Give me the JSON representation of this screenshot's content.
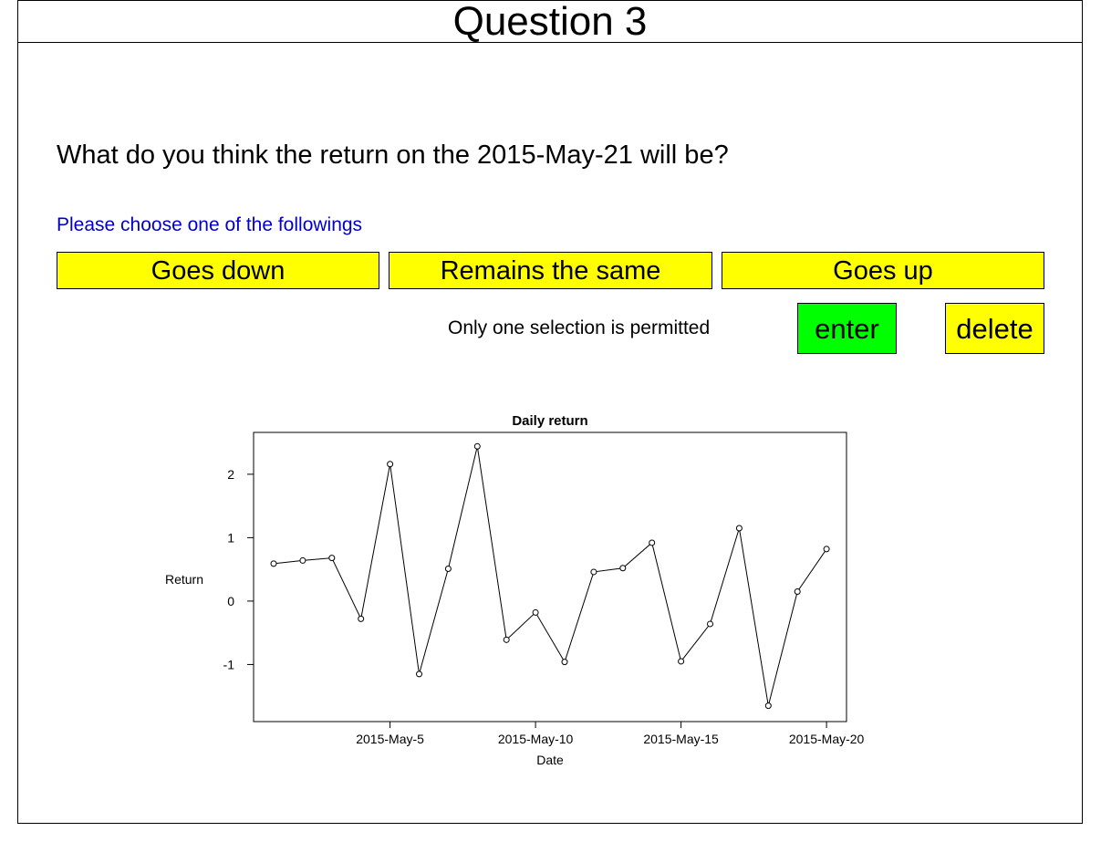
{
  "header": {
    "title": "Question 3"
  },
  "question": {
    "text": "What do you think the return on the 2015-May-21 will be?"
  },
  "instruction": "Please choose one of the followings",
  "choices": [
    {
      "label": "Goes down"
    },
    {
      "label": "Remains the same"
    },
    {
      "label": "Goes up"
    }
  ],
  "note": "Only one selection is permitted",
  "actions": {
    "enter_label": "enter",
    "delete_label": "delete"
  },
  "colors": {
    "choice_bg": "#ffff00",
    "enter_bg": "#00ff00",
    "delete_bg": "#ffff00",
    "instruction_text": "#0000cc"
  },
  "chart_data": {
    "type": "line",
    "title": "Daily return",
    "xlabel": "Date",
    "ylabel": "Return",
    "x": [
      "2015-May-1",
      "2015-May-2",
      "2015-May-3",
      "2015-May-4",
      "2015-May-5",
      "2015-May-6",
      "2015-May-7",
      "2015-May-8",
      "2015-May-9",
      "2015-May-10",
      "2015-May-11",
      "2015-May-12",
      "2015-May-13",
      "2015-May-14",
      "2015-May-15",
      "2015-May-16",
      "2015-May-17",
      "2015-May-18",
      "2015-May-19",
      "2015-May-20"
    ],
    "values": [
      0.59,
      0.64,
      0.68,
      -0.28,
      2.16,
      -1.15,
      0.51,
      2.44,
      -0.61,
      -0.18,
      -0.96,
      0.46,
      0.52,
      0.92,
      -0.95,
      -0.36,
      1.15,
      -1.65,
      0.15,
      0.82
    ],
    "x_ticks": [
      "2015-May-5",
      "2015-May-10",
      "2015-May-15",
      "2015-May-20"
    ],
    "y_ticks": [
      "-1",
      "0",
      "1",
      "2"
    ],
    "ylim": [
      -1.9,
      2.66
    ],
    "marker": "open-circle",
    "grid": false,
    "legend": "none"
  }
}
